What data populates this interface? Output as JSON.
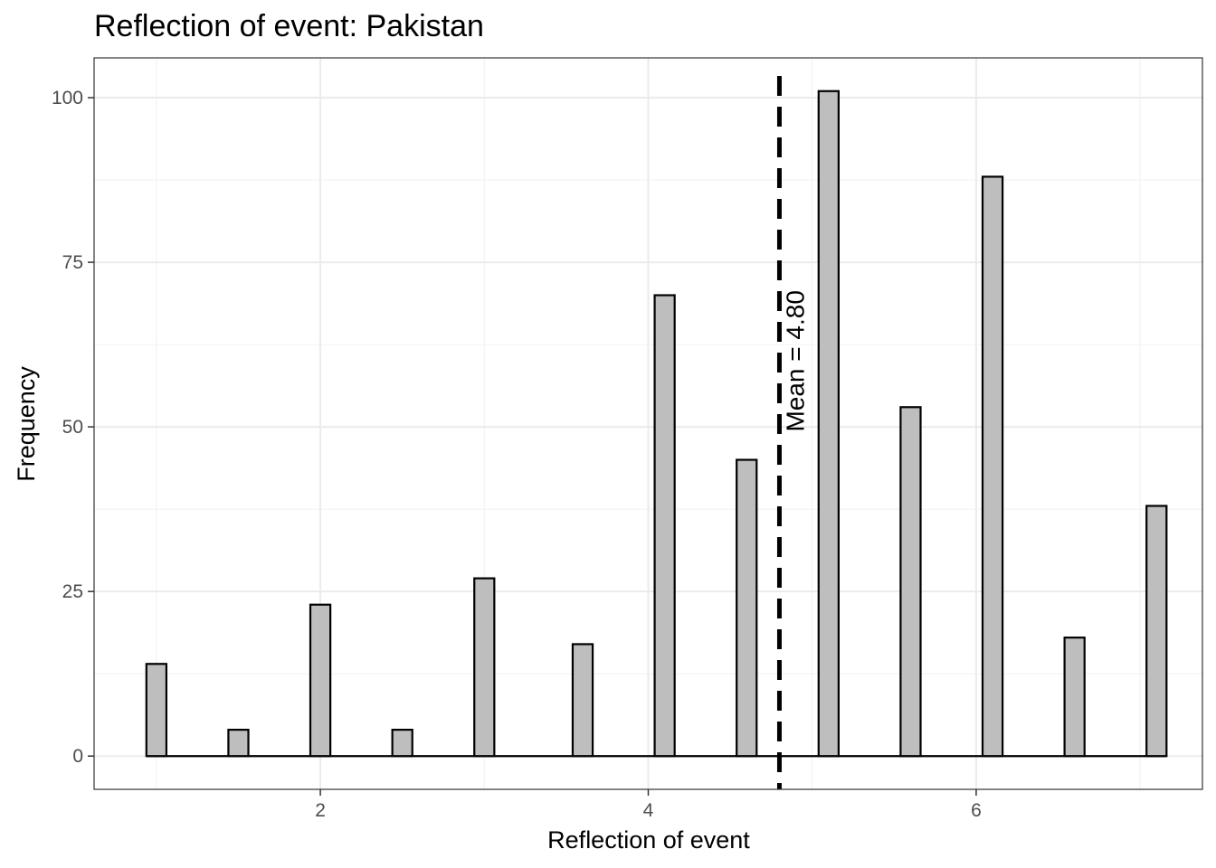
{
  "chart_data": {
    "type": "bar",
    "title": "Reflection of event: Pakistan",
    "xlabel": "Reflection of event",
    "ylabel": "Frequency",
    "x_ticks": [
      2,
      4,
      6
    ],
    "y_ticks": [
      0,
      25,
      50,
      75,
      100
    ],
    "xlim": [
      0.62,
      7.38
    ],
    "ylim": [
      -5.05,
      106.05
    ],
    "grid": true,
    "bin_width": 0.122,
    "bars": [
      {
        "x": 1.0,
        "value": 14
      },
      {
        "x": 1.5,
        "value": 4
      },
      {
        "x": 2.0,
        "value": 23
      },
      {
        "x": 2.5,
        "value": 4
      },
      {
        "x": 3.0,
        "value": 27
      },
      {
        "x": 3.6,
        "value": 17
      },
      {
        "x": 4.1,
        "value": 70
      },
      {
        "x": 4.6,
        "value": 45
      },
      {
        "x": 5.1,
        "value": 101
      },
      {
        "x": 5.6,
        "value": 53
      },
      {
        "x": 6.1,
        "value": 88
      },
      {
        "x": 6.6,
        "value": 18
      },
      {
        "x": 7.1,
        "value": 38
      }
    ],
    "bar_fill": "#bebebe",
    "bar_stroke": "#000000",
    "mean_line": {
      "value": 4.8,
      "label": "Mean = 4.80",
      "style": "dashed"
    }
  }
}
